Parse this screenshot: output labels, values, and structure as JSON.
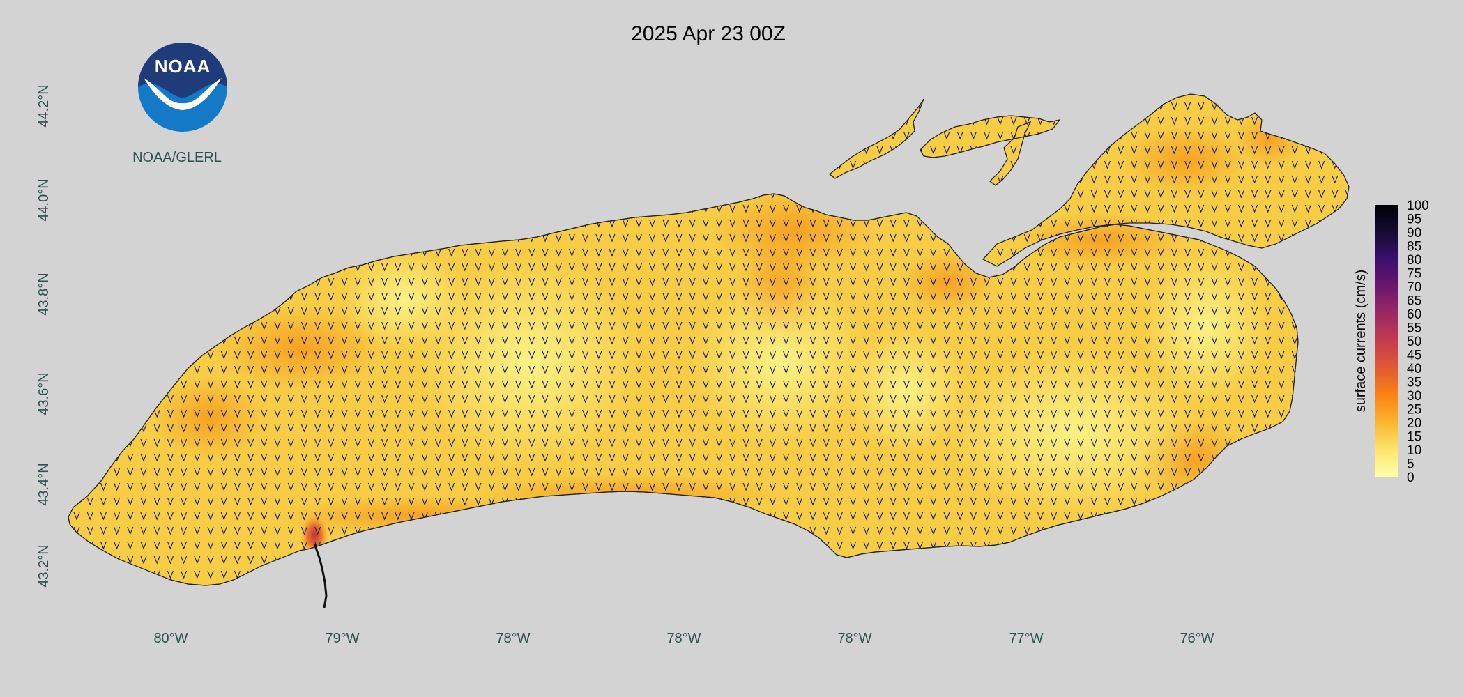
{
  "map": {
    "title": "2025 Apr 23 00Z",
    "logo_text": "NOAA",
    "credit": "NOAA/GLERL",
    "lat_labels": [
      "43.2°N",
      "43.4°N",
      "43.6°N",
      "43.8°N",
      "44.0°N",
      "44.2°N"
    ],
    "lon_labels": [
      "80°W",
      "79°W",
      "78°W",
      "78°W",
      "78°W",
      "77°W",
      "76°W"
    ],
    "colorbar": {
      "label": "surface currents (cm/s)",
      "ticks": [
        "0",
        "5",
        "10",
        "15",
        "20",
        "25",
        "30",
        "35",
        "40",
        "45",
        "50",
        "55",
        "60",
        "65",
        "70",
        "75",
        "80",
        "85",
        "90",
        "95",
        "100"
      ],
      "range": [
        0,
        100
      ],
      "colormap": [
        "#ffffa8",
        "#fde46b",
        "#fbb52f",
        "#f98313",
        "#e35933",
        "#c43c4e",
        "#9b2964",
        "#6a176e",
        "#3b0f6f",
        "#140b34",
        "#000004"
      ]
    },
    "colors": {
      "background": "#d3d3d3",
      "lake_fill": "#f7cd45",
      "arrow_color": "#1a1a66",
      "noaa_dark_blue": "#1f3b7a",
      "noaa_light_blue": "#1479c6"
    },
    "current_direction": "south"
  }
}
